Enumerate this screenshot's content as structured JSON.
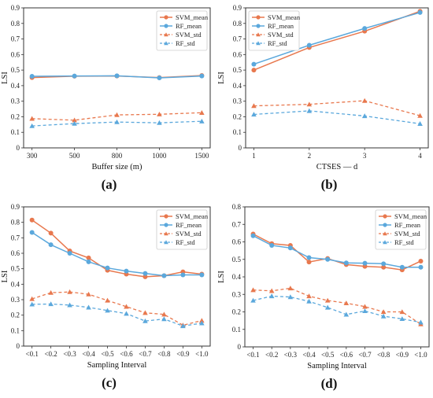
{
  "colors": {
    "svm": "#E8784E",
    "rf": "#5BA8DC"
  },
  "chart_data": [
    {
      "type": "line",
      "panel_label": "(a)",
      "xlabel": "Buffer size (m)",
      "ylabel": "LSI",
      "categories": [
        "300",
        "500",
        "800",
        "1000",
        "1500"
      ],
      "ylim": [
        0,
        0.9
      ],
      "yticks": [
        "0",
        "0.1",
        "0.2",
        "0.3",
        "0.4",
        "0.5",
        "0.6",
        "0.7",
        "0.8",
        "0.9"
      ],
      "legend_position": "top-right",
      "series": [
        {
          "name": "SVM_mean",
          "values": [
            0.452,
            0.461,
            0.462,
            0.452,
            0.465
          ]
        },
        {
          "name": "RF_mean",
          "values": [
            0.46,
            0.462,
            0.463,
            0.45,
            0.462
          ]
        },
        {
          "name": "SVM_std",
          "values": [
            0.188,
            0.178,
            0.212,
            0.216,
            0.226
          ]
        },
        {
          "name": "RF_std",
          "values": [
            0.141,
            0.156,
            0.166,
            0.161,
            0.171
          ]
        }
      ]
    },
    {
      "type": "line",
      "panel_label": "(b)",
      "xlabel": "CTSES — d",
      "ylabel": "LSI",
      "categories": [
        "1",
        "2",
        "3",
        "4"
      ],
      "ylim": [
        0,
        0.9
      ],
      "yticks": [
        "0",
        "0.1",
        "0.2",
        "0.3",
        "0.4",
        "0.5",
        "0.6",
        "0.7",
        "0.8",
        "0.9"
      ],
      "legend_position": "top-left",
      "series": [
        {
          "name": "SVM_mean",
          "values": [
            0.5,
            0.645,
            0.75,
            0.878
          ]
        },
        {
          "name": "RF_mean",
          "values": [
            0.538,
            0.66,
            0.768,
            0.87
          ]
        },
        {
          "name": "SVM_std",
          "values": [
            0.27,
            0.28,
            0.303,
            0.207
          ]
        },
        {
          "name": "RF_std",
          "values": [
            0.215,
            0.238,
            0.205,
            0.155
          ]
        }
      ]
    },
    {
      "type": "line",
      "panel_label": "(c)",
      "xlabel": "Sampling Interval",
      "ylabel": "LSI",
      "categories": [
        "<0.1",
        "<0.2",
        "<0.3",
        "<0.4",
        "<0.5",
        "<0.6",
        "<0.7",
        "<0.8",
        "<0.9",
        "<1.0"
      ],
      "ylim": [
        0,
        0.9
      ],
      "yticks": [
        "0",
        "0.1",
        "0.2",
        "0.3",
        "0.4",
        "0.5",
        "0.6",
        "0.7",
        "0.8",
        "0.9"
      ],
      "legend_position": "top-right",
      "series": [
        {
          "name": "SVM_mean",
          "values": [
            0.815,
            0.73,
            0.615,
            0.57,
            0.49,
            0.465,
            0.448,
            0.455,
            0.48,
            0.465
          ]
        },
        {
          "name": "RF_mean",
          "values": [
            0.735,
            0.655,
            0.6,
            0.545,
            0.505,
            0.485,
            0.47,
            0.455,
            0.46,
            0.46
          ]
        },
        {
          "name": "SVM_std",
          "values": [
            0.305,
            0.345,
            0.35,
            0.335,
            0.295,
            0.255,
            0.215,
            0.205,
            0.135,
            0.165
          ]
        },
        {
          "name": "RF_std",
          "values": [
            0.27,
            0.272,
            0.265,
            0.25,
            0.23,
            0.21,
            0.162,
            0.175,
            0.13,
            0.148
          ]
        }
      ]
    },
    {
      "type": "line",
      "panel_label": "(d)",
      "xlabel": "Sampling Interval",
      "ylabel": "LSI",
      "categories": [
        "<0.1",
        "<0.2",
        "<0.3",
        "<0.4",
        "<0.5",
        "<0.6",
        "<0.7",
        "<0.8",
        "<0.9",
        "<1.0"
      ],
      "ylim": [
        0,
        0.8
      ],
      "yticks": [
        "0",
        "0.1",
        "0.2",
        "0.3",
        "0.4",
        "0.5",
        "0.6",
        "0.7",
        "0.8"
      ],
      "legend_position": "top-right",
      "series": [
        {
          "name": "SVM_mean",
          "values": [
            0.645,
            0.59,
            0.58,
            0.485,
            0.505,
            0.47,
            0.46,
            0.455,
            0.44,
            0.49
          ]
        },
        {
          "name": "RF_mean",
          "values": [
            0.635,
            0.58,
            0.565,
            0.51,
            0.5,
            0.48,
            0.478,
            0.475,
            0.455,
            0.455
          ]
        },
        {
          "name": "SVM_std",
          "values": [
            0.325,
            0.32,
            0.335,
            0.29,
            0.265,
            0.25,
            0.23,
            0.2,
            0.2,
            0.13
          ]
        },
        {
          "name": "RF_std",
          "values": [
            0.265,
            0.29,
            0.285,
            0.26,
            0.225,
            0.185,
            0.205,
            0.175,
            0.16,
            0.14
          ]
        }
      ]
    }
  ]
}
